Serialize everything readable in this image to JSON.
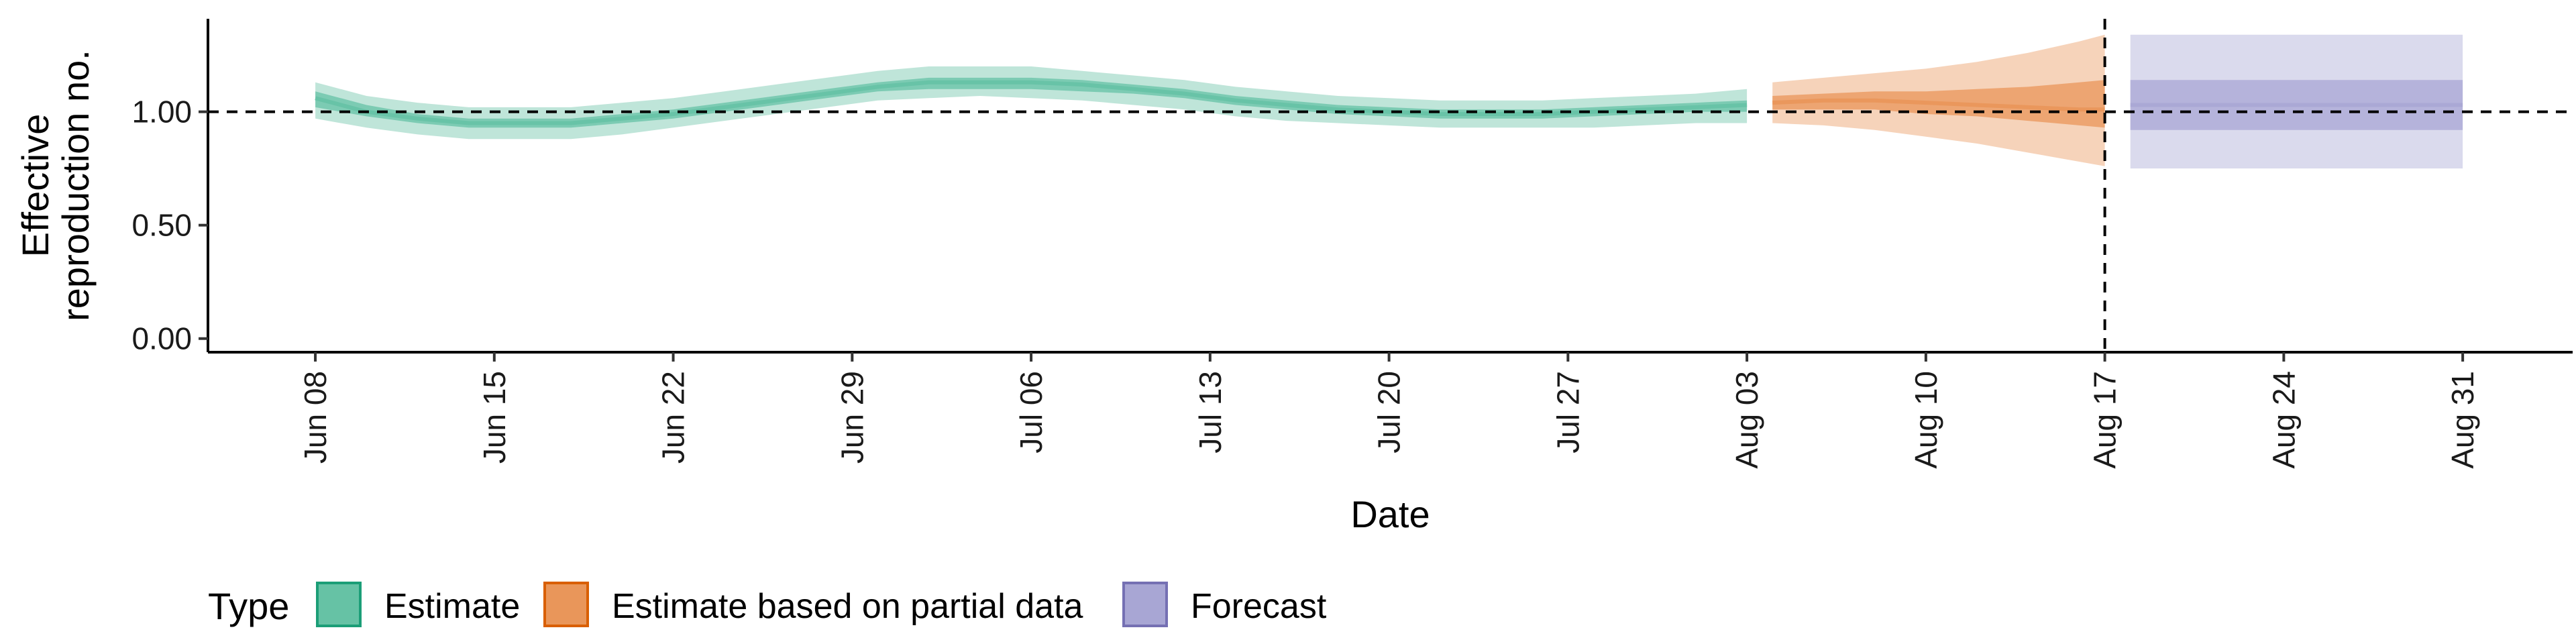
{
  "chart_data": {
    "type": "area",
    "xlabel": "Date",
    "ylabel_lines": [
      "Effective",
      "reproduction no."
    ],
    "x_ticks": [
      "Jun 08",
      "Jun 15",
      "Jun 22",
      "Jun 29",
      "Jul 06",
      "Jul 13",
      "Jul 20",
      "Jul 27",
      "Aug 03",
      "Aug 10",
      "Aug 17",
      "Aug 24",
      "Aug 31"
    ],
    "x_tick_day_index": [
      0,
      7,
      14,
      21,
      28,
      35,
      42,
      49,
      56,
      63,
      70,
      77,
      84
    ],
    "xlim_days": [
      -4.2,
      88.3
    ],
    "y_ticks": [
      "0.00",
      "0.50",
      "1.00"
    ],
    "y_tick_values": [
      0.0,
      0.5,
      1.0
    ],
    "ylim": [
      -0.06,
      1.41
    ],
    "reference_line_y": 1.0,
    "forecast_start_label": "Aug 17",
    "grid": false,
    "legend": {
      "title": "Type",
      "position": "bottom-left",
      "items": [
        {
          "label": "Estimate",
          "fill": "#66c2a5",
          "stroke": "#1b9e77"
        },
        {
          "label": "Estimate based on partial data",
          "fill": "#e9965a",
          "stroke": "#d95f02"
        },
        {
          "label": "Forecast",
          "fill": "#a8a6d4",
          "stroke": "#7570b3"
        }
      ]
    },
    "series": [
      {
        "name": "Estimate",
        "color": "#1b9e77",
        "x_day": [
          0,
          2,
          4,
          6,
          8,
          10,
          12,
          14,
          16,
          18,
          20,
          22,
          24,
          26,
          28,
          30,
          32,
          34,
          36,
          38,
          40,
          42,
          44,
          46,
          48,
          50,
          52,
          54,
          56
        ],
        "median": [
          1.06,
          1.0,
          0.97,
          0.95,
          0.95,
          0.95,
          0.97,
          0.99,
          1.02,
          1.05,
          1.08,
          1.11,
          1.13,
          1.13,
          1.13,
          1.12,
          1.1,
          1.08,
          1.05,
          1.03,
          1.01,
          1.0,
          0.99,
          0.99,
          0.99,
          1.0,
          1.01,
          1.02,
          1.03
        ],
        "inner_lower": [
          1.02,
          0.98,
          0.95,
          0.93,
          0.93,
          0.93,
          0.95,
          0.97,
          1.0,
          1.03,
          1.06,
          1.09,
          1.1,
          1.1,
          1.1,
          1.09,
          1.08,
          1.06,
          1.03,
          1.01,
          0.99,
          0.98,
          0.97,
          0.97,
          0.97,
          0.98,
          0.99,
          1.0,
          1.0
        ],
        "inner_upper": [
          1.09,
          1.03,
          0.99,
          0.97,
          0.97,
          0.97,
          0.99,
          1.01,
          1.04,
          1.07,
          1.1,
          1.13,
          1.15,
          1.15,
          1.15,
          1.14,
          1.12,
          1.1,
          1.07,
          1.05,
          1.03,
          1.02,
          1.01,
          1.01,
          1.01,
          1.02,
          1.03,
          1.04,
          1.05
        ],
        "outer_lower": [
          0.97,
          0.93,
          0.9,
          0.88,
          0.88,
          0.88,
          0.9,
          0.93,
          0.96,
          0.99,
          1.02,
          1.05,
          1.06,
          1.07,
          1.06,
          1.05,
          1.03,
          1.01,
          0.98,
          0.96,
          0.95,
          0.94,
          0.93,
          0.93,
          0.93,
          0.93,
          0.94,
          0.95,
          0.95
        ],
        "outer_upper": [
          1.13,
          1.07,
          1.04,
          1.02,
          1.02,
          1.02,
          1.04,
          1.06,
          1.09,
          1.12,
          1.15,
          1.18,
          1.2,
          1.2,
          1.2,
          1.18,
          1.16,
          1.14,
          1.11,
          1.09,
          1.07,
          1.06,
          1.05,
          1.05,
          1.05,
          1.06,
          1.07,
          1.08,
          1.1
        ]
      },
      {
        "name": "Estimate based on partial data",
        "color": "#d95f02",
        "x_day": [
          57,
          59,
          61,
          63,
          65,
          67,
          69,
          70
        ],
        "median": [
          1.04,
          1.05,
          1.05,
          1.04,
          1.03,
          1.02,
          1.01,
          1.01
        ],
        "inner_lower": [
          1.01,
          1.01,
          1.01,
          0.99,
          0.98,
          0.96,
          0.94,
          0.93
        ],
        "inner_upper": [
          1.07,
          1.08,
          1.09,
          1.09,
          1.1,
          1.11,
          1.13,
          1.14
        ],
        "outer_lower": [
          0.95,
          0.94,
          0.92,
          0.89,
          0.86,
          0.82,
          0.78,
          0.76
        ],
        "outer_upper": [
          1.13,
          1.15,
          1.17,
          1.19,
          1.22,
          1.26,
          1.31,
          1.34
        ]
      },
      {
        "name": "Forecast",
        "color": "#7570b3",
        "x_day": [
          71,
          84
        ],
        "median": [
          1.03,
          1.03
        ],
        "inner_lower": [
          0.92,
          0.92
        ],
        "inner_upper": [
          1.14,
          1.14
        ],
        "outer_lower": [
          0.75,
          0.75
        ],
        "outer_upper": [
          1.34,
          1.34
        ]
      }
    ]
  }
}
